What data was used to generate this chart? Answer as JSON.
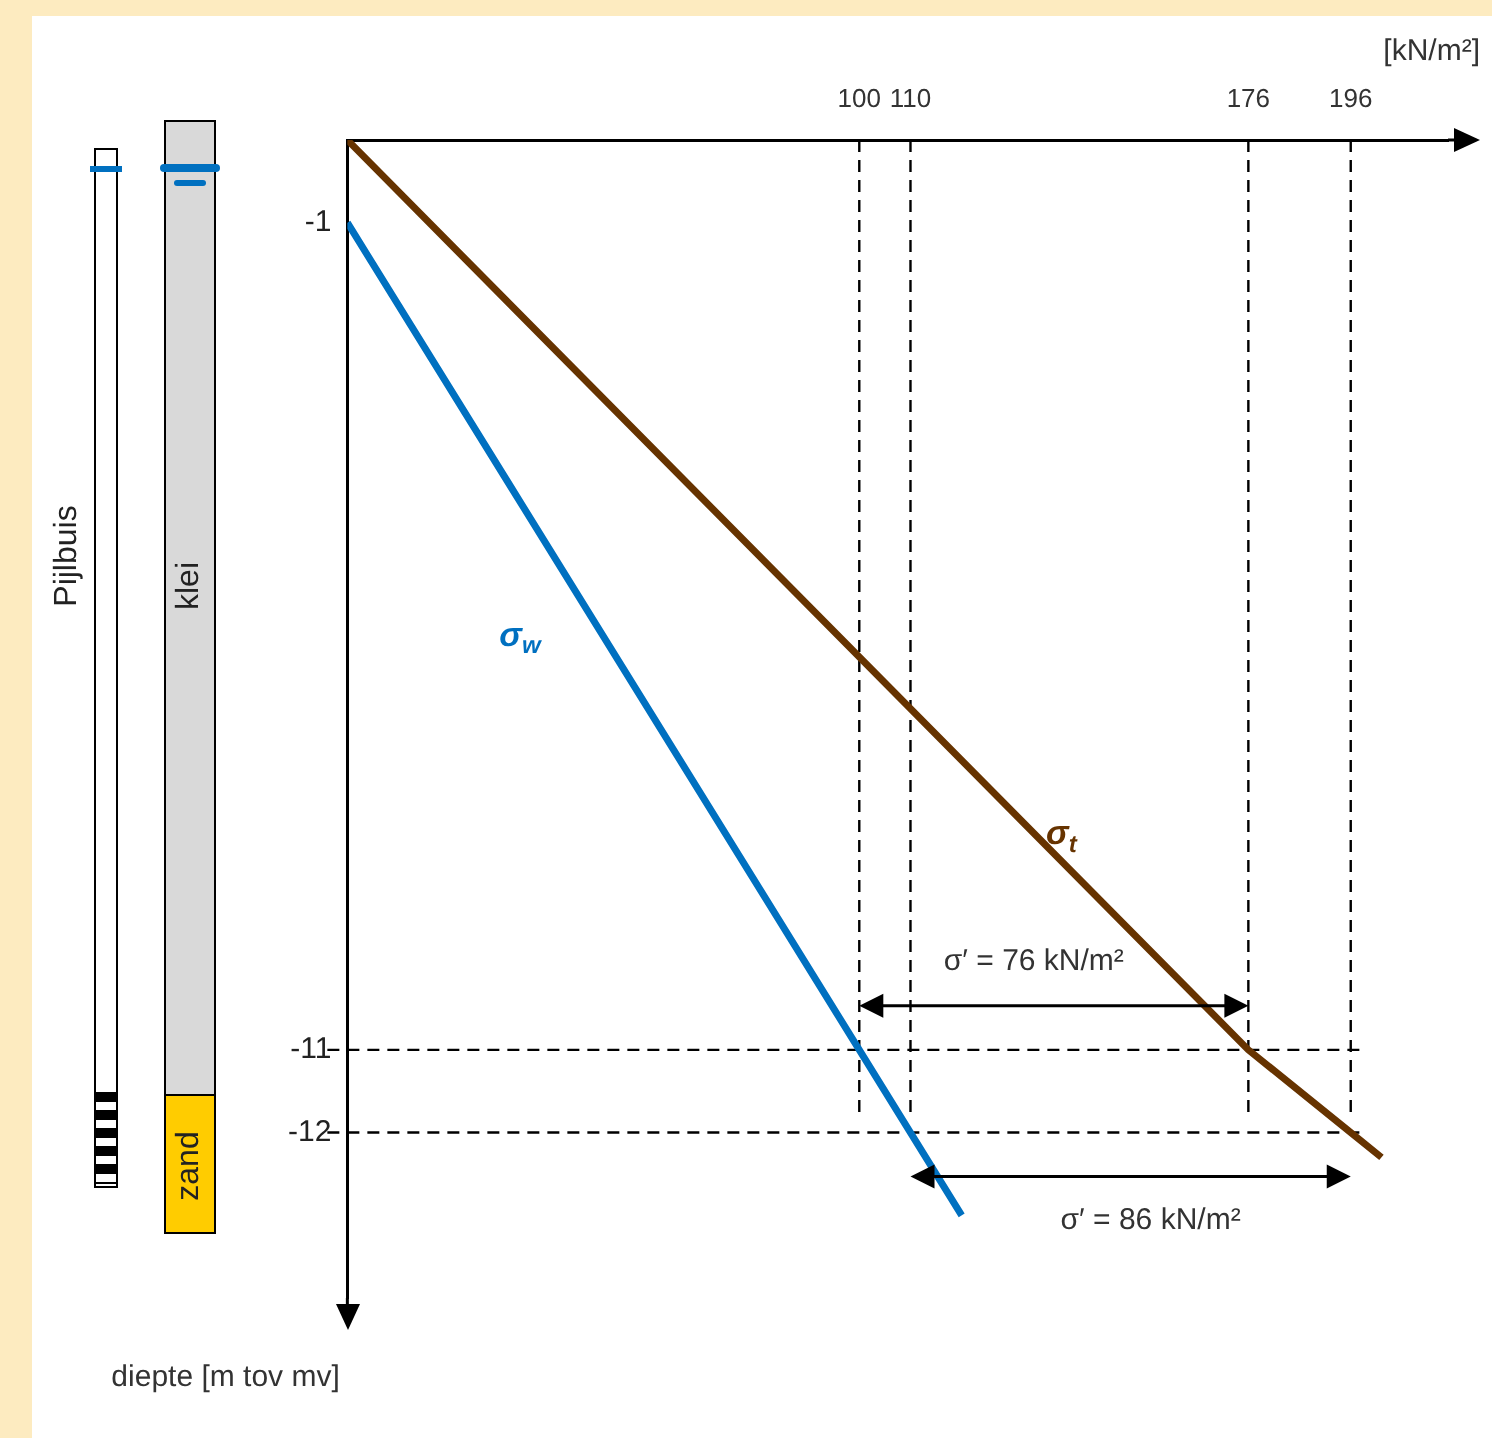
{
  "chart_data": {
    "type": "line",
    "xlabel": "[kN/m²]",
    "ylabel": "diepte [m tov mv]",
    "xlim": [
      0,
      215
    ],
    "xticks": [
      100,
      110,
      176,
      196
    ],
    "ylim": [
      -14,
      0
    ],
    "yticks": [
      -1,
      -11,
      -12
    ],
    "grid": false,
    "line_style": "solid",
    "marker": "none",
    "series": [
      {
        "name": "σ$_{w}$",
        "color": "#0070c0",
        "x": [
          0,
          100,
          110,
          120
        ],
        "values": [
          -1,
          -11,
          -12,
          -13
        ]
      },
      {
        "name": "σ$_{t}$",
        "color": "#663300",
        "x": [
          0,
          176,
          196,
          202
        ],
        "values": [
          0,
          -11,
          -12,
          -12.3
        ]
      }
    ],
    "ref_lines": [
      {
        "axis": "x",
        "value": 100,
        "line_style": "dashed",
        "color": "#000000"
      },
      {
        "axis": "x",
        "value": 110,
        "line_style": "dashed",
        "color": "#000000"
      },
      {
        "axis": "x",
        "value": 176,
        "line_style": "dashed",
        "color": "#000000"
      },
      {
        "axis": "x",
        "value": 196,
        "line_style": "dashed",
        "color": "#000000"
      },
      {
        "axis": "y",
        "value": -11,
        "line_style": "dashed",
        "color": "#000000"
      },
      {
        "axis": "y",
        "value": -12,
        "line_style": "dashed",
        "color": "#000000"
      }
    ],
    "annotations": [
      "Pijlbuis",
      "klei",
      "zand",
      "σ′ = 76 kN/m²",
      "σ′ = 86 kN/m²"
    ]
  }
}
